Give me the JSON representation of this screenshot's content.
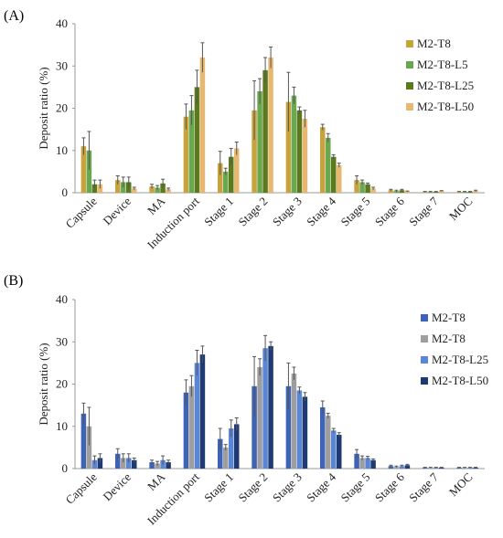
{
  "panels": [
    {
      "label": "(A)"
    },
    {
      "label": "(B)"
    }
  ],
  "chart_data": [
    {
      "type": "bar",
      "panel": "(A)",
      "ylabel": "Deposit ratio (%)",
      "ylim": [
        0,
        40
      ],
      "yticks": [
        0,
        10,
        20,
        30,
        40
      ],
      "grid": false,
      "legend_position": "right",
      "categories": [
        "Capsule",
        "Device",
        "MA",
        "Induction port",
        "Stage 1",
        "Stage 2",
        "Stage 3",
        "Stage 4",
        "Stage 5",
        "Stage 6",
        "Stage 7",
        "MOC"
      ],
      "series": [
        {
          "name": "M2-T8",
          "color": "#c8a23c",
          "values": [
            11.0,
            3.0,
            1.5,
            18.0,
            7.0,
            19.5,
            21.5,
            15.5,
            3.0,
            0.6,
            0.2,
            0.2
          ],
          "errors": [
            2.0,
            1.0,
            0.5,
            3.0,
            2.8,
            7.0,
            7.0,
            0.7,
            1.0,
            0.2,
            0.1,
            0.1
          ]
        },
        {
          "name": "M2-T8-L5",
          "color": "#6aa84f",
          "values": [
            10.0,
            2.5,
            1.2,
            19.5,
            5.0,
            24.0,
            23.0,
            13.0,
            2.5,
            0.4,
            0.2,
            0.2
          ],
          "errors": [
            4.5,
            1.2,
            0.5,
            3.5,
            0.8,
            3.0,
            2.0,
            1.0,
            0.5,
            0.2,
            0.1,
            0.1
          ]
        },
        {
          "name": "M2-T8-L25",
          "color": "#5b7a1e",
          "values": [
            2.0,
            2.5,
            2.2,
            25.0,
            8.5,
            29.0,
            19.5,
            8.5,
            2.0,
            0.6,
            0.2,
            0.2
          ],
          "errors": [
            1.0,
            1.2,
            1.0,
            4.0,
            2.0,
            3.0,
            0.8,
            0.5,
            0.3,
            0.2,
            0.1,
            0.1
          ]
        },
        {
          "name": "M2-T8-L50",
          "color": "#e6b870",
          "values": [
            2.0,
            1.0,
            0.8,
            32.0,
            10.5,
            32.0,
            17.5,
            6.5,
            1.0,
            0.3,
            0.4,
            0.4
          ],
          "errors": [
            1.0,
            0.3,
            0.3,
            3.5,
            1.5,
            2.5,
            2.0,
            0.5,
            0.3,
            0.1,
            0.1,
            0.2
          ]
        }
      ]
    },
    {
      "type": "bar",
      "panel": "(B)",
      "ylabel": "Deposit ratio (%)",
      "ylim": [
        0,
        40
      ],
      "yticks": [
        0,
        10,
        20,
        30,
        40
      ],
      "grid": false,
      "legend_position": "right",
      "categories": [
        "Capsule",
        "Device",
        "MA",
        "Induction port",
        "Stage 1",
        "Stage 2",
        "Stage 3",
        "Stage 4",
        "Stage 5",
        "Stage 6",
        "Stage 7",
        "MOC"
      ],
      "series": [
        {
          "name": "M2-T8",
          "color": "#3f63b5",
          "values": [
            13.0,
            3.5,
            1.5,
            18.0,
            7.0,
            19.5,
            19.5,
            14.5,
            3.5,
            0.6,
            0.2,
            0.2
          ],
          "errors": [
            2.5,
            1.2,
            0.5,
            3.0,
            2.5,
            7.0,
            5.5,
            1.5,
            1.0,
            0.2,
            0.1,
            0.1
          ]
        },
        {
          "name": "M2-T8",
          "color": "#9e9e9e",
          "values": [
            10.0,
            2.5,
            1.2,
            19.5,
            5.0,
            24.0,
            22.5,
            12.5,
            2.5,
            0.4,
            0.2,
            0.2
          ],
          "errors": [
            4.5,
            1.0,
            0.5,
            2.5,
            0.7,
            2.0,
            1.5,
            0.6,
            0.5,
            0.2,
            0.1,
            0.1
          ]
        },
        {
          "name": "M2-T8-L25",
          "color": "#5b86d6",
          "values": [
            2.0,
            2.5,
            2.0,
            25.0,
            9.5,
            28.5,
            18.5,
            9.0,
            2.5,
            0.6,
            0.2,
            0.2
          ],
          "errors": [
            1.0,
            1.0,
            1.0,
            3.0,
            2.0,
            3.0,
            0.8,
            0.5,
            0.4,
            0.2,
            0.1,
            0.1
          ]
        },
        {
          "name": "M2-T8-L50",
          "color": "#1f3a73",
          "values": [
            2.5,
            2.0,
            1.5,
            27.0,
            10.5,
            29.0,
            17.0,
            8.0,
            2.0,
            0.8,
            0.2,
            0.2
          ],
          "errors": [
            1.0,
            0.5,
            0.5,
            2.0,
            1.5,
            1.0,
            1.0,
            0.5,
            0.3,
            0.2,
            0.1,
            0.1
          ]
        }
      ]
    }
  ]
}
